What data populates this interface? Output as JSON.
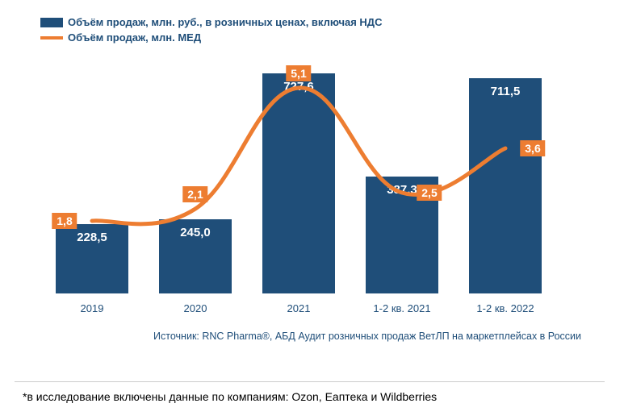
{
  "chart": {
    "type": "bar+line",
    "legend": {
      "bar": "Объём продаж, млн. руб., в розничных ценах, включая НДС",
      "line": "Объём продаж, млн. МЕД"
    },
    "categories": [
      "2019",
      "2020",
      "2021",
      "1-2 кв. 2021",
      "1-2 кв. 2022"
    ],
    "bars": {
      "values": [
        228.5,
        245.0,
        727.6,
        387.3,
        711.5
      ],
      "labels": [
        "228,5",
        "245,0",
        "727,6",
        "387,3",
        "711,5"
      ],
      "color": "#1f4e79",
      "value_color": "#ffffff",
      "value_fontsize": 15,
      "bar_width_frac": 0.7,
      "y_max": 800
    },
    "line": {
      "values": [
        1.8,
        2.1,
        5.1,
        2.5,
        3.6
      ],
      "labels": [
        "1,8",
        "2,1",
        "5,1",
        "2,5",
        "3,6"
      ],
      "color": "#ed7d31",
      "stroke_width": 5,
      "label_bg": "#ed7d31",
      "label_color": "#ffffff",
      "label_fontsize": 14,
      "y_max": 6.0
    },
    "label_positions": [
      "left",
      "top",
      "top",
      "right",
      "right"
    ],
    "x_label_color": "#1f4e79",
    "x_label_fontsize": 13,
    "legend_text_color": "#1f4e79",
    "legend_fontsize": 13,
    "background_color": "#ffffff"
  },
  "source": {
    "text": "Источник: RNC Pharma®, АБД Аудит розничных продаж ВетЛП на маркетплейсах в России",
    "color": "#1f4e79",
    "fontsize": 12.5
  },
  "footnote": {
    "text": "*в исследование включены данные по компаниям: Ozon, Еаптека и Wildberries",
    "color": "#000000",
    "fontsize": 14
  }
}
